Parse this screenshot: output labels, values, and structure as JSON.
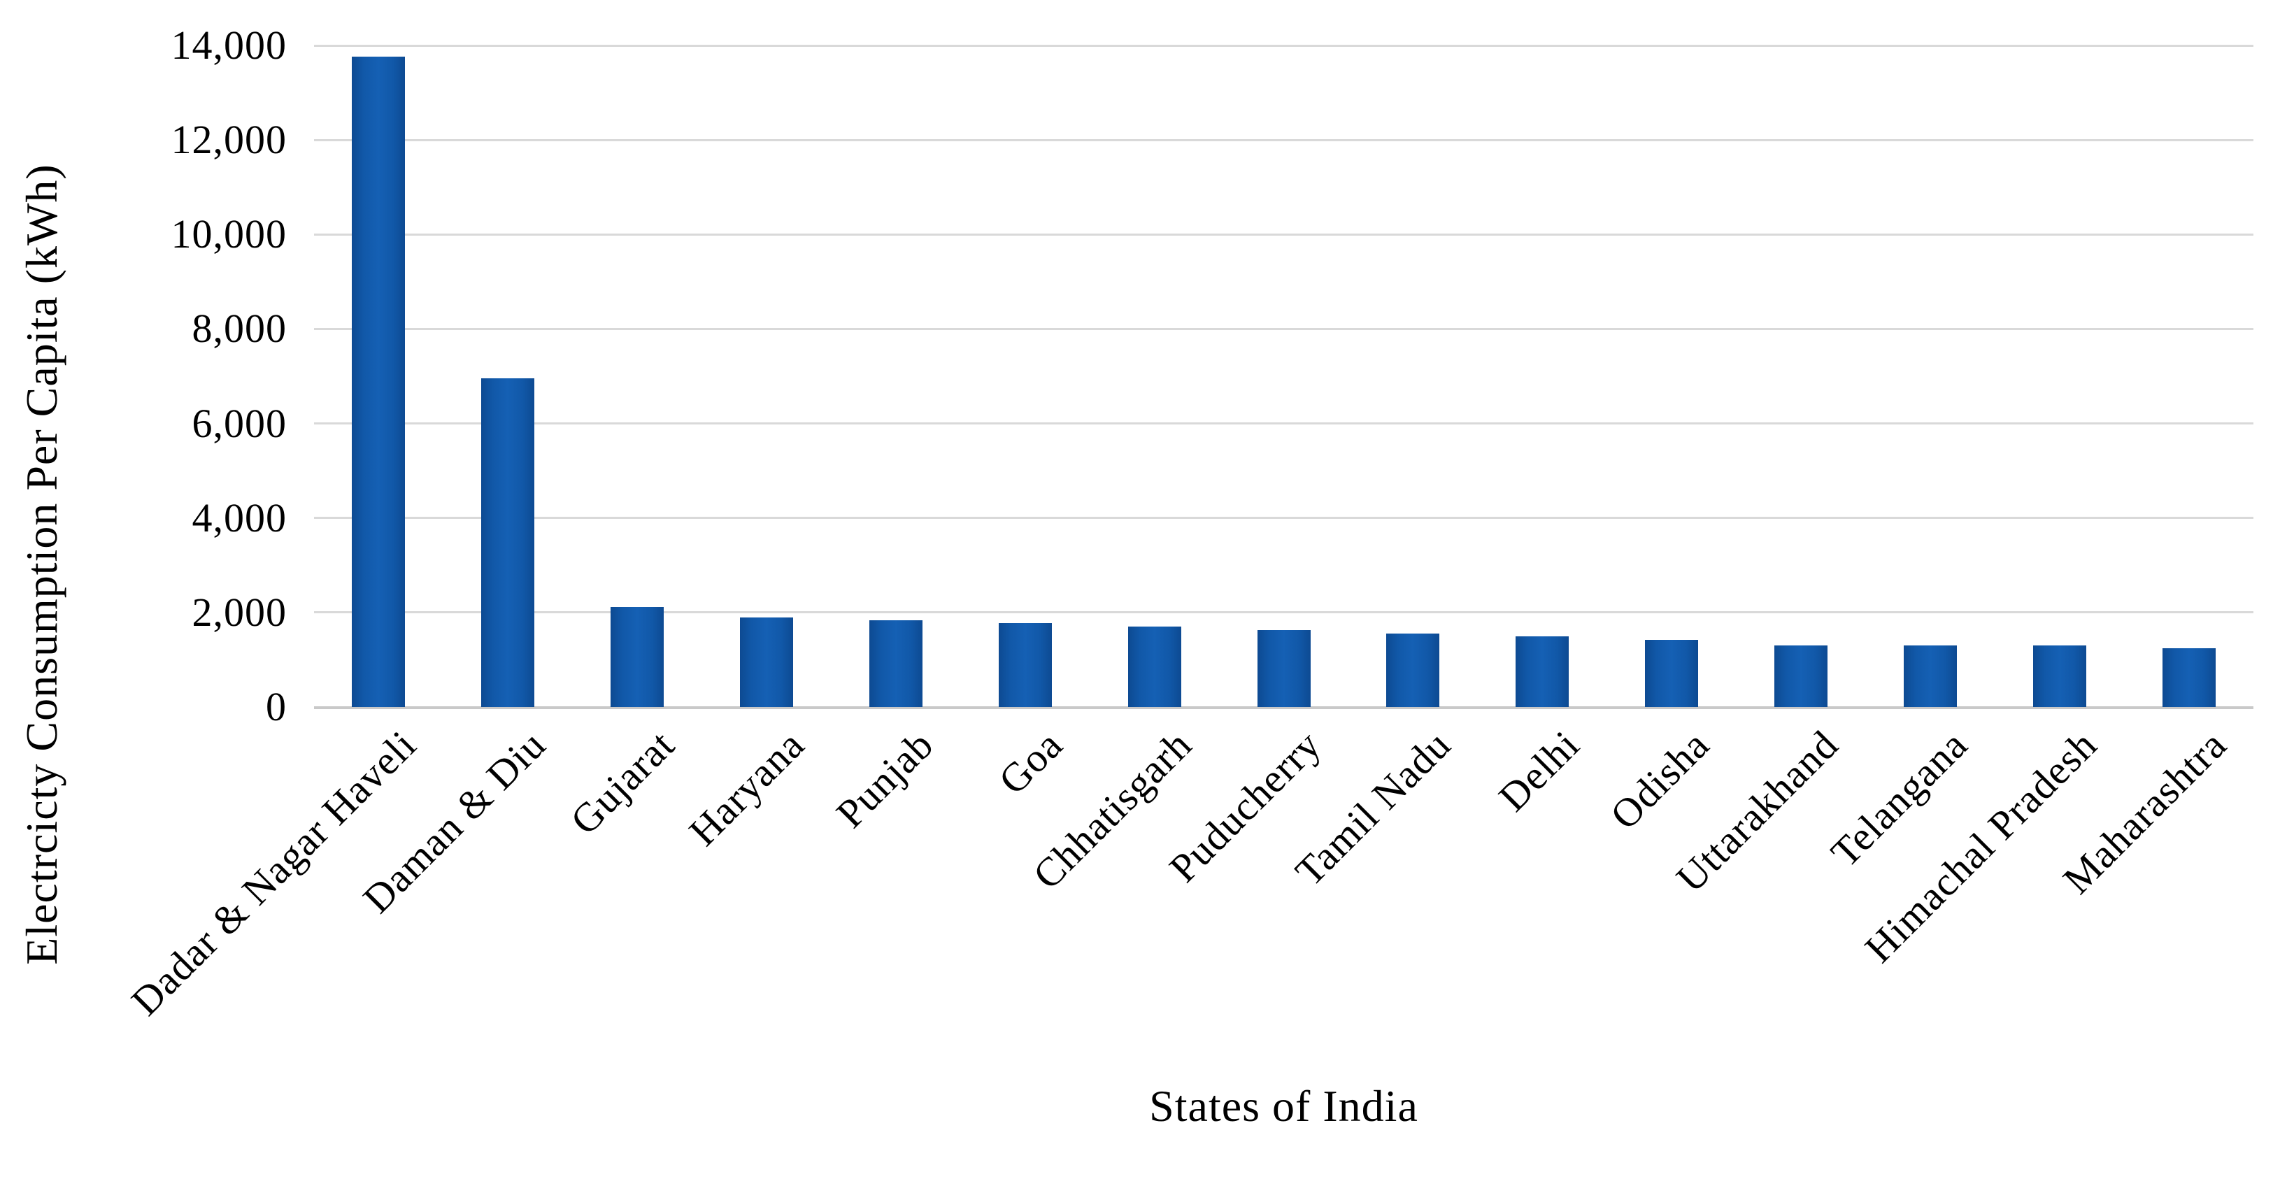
{
  "chart_data": {
    "type": "bar",
    "title": "",
    "xlabel": "States of India",
    "ylabel": "Electrcicty Consumption Per Capita (kWh)",
    "ylim": [
      0,
      14000
    ],
    "yticks": [
      0,
      2000,
      4000,
      6000,
      8000,
      10000,
      12000,
      14000
    ],
    "grid": true,
    "legend": false,
    "bar_color": "#1158a8",
    "bar_color_edge": "#0d4a92",
    "bar_color_center": "#1560b4",
    "gridline_color": "#d9d9d9",
    "zero_line_color": "#c9c9c9",
    "categories": [
      "Dadar & Nagar Haveli",
      "Daman & Diu",
      "Gujarat",
      "Haryana",
      "Punjab",
      "Goa",
      "Chhatisgarh",
      "Puducherry",
      "Tamil Nadu",
      "Delhi",
      "Odisha",
      "Uttarakhand",
      "Telangana",
      "Himachal Pradesh",
      "Maharashtra"
    ],
    "values": [
      13770,
      6960,
      2110,
      1890,
      1840,
      1780,
      1700,
      1630,
      1560,
      1500,
      1420,
      1300,
      1300,
      1300,
      1250
    ]
  }
}
